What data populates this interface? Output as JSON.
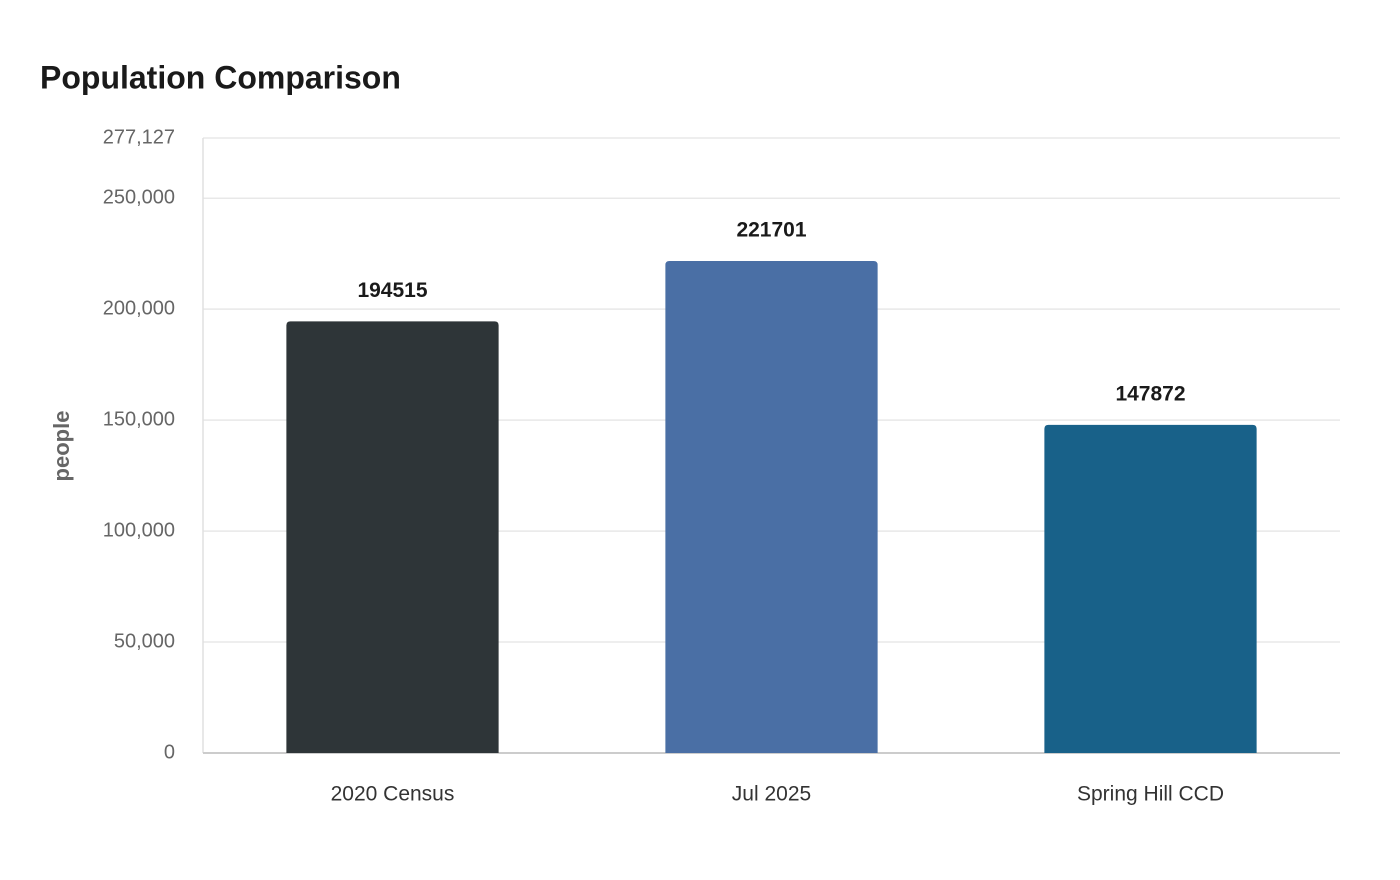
{
  "chart_data": {
    "type": "bar",
    "title": "Population Comparison",
    "y_label": "people",
    "categories": [
      "2020 Census",
      "Jul 2025",
      "Spring Hill CCD"
    ],
    "values": [
      194515,
      221701,
      147872
    ],
    "colors": [
      "#2e3538",
      "#4a6fa5",
      "#186189"
    ],
    "ylim": [
      0,
      277127
    ],
    "yticks": [
      0,
      {
        "value": 50000,
        "label": "50,000"
      },
      {
        "value": 100000,
        "label": "100,000"
      },
      {
        "value": 150000,
        "label": "150,000"
      },
      {
        "value": 200000,
        "label": "200,000"
      },
      {
        "value": 250000,
        "label": "250,000"
      },
      {
        "value": 277127,
        "label": "277,127"
      }
    ],
    "grid": true
  }
}
